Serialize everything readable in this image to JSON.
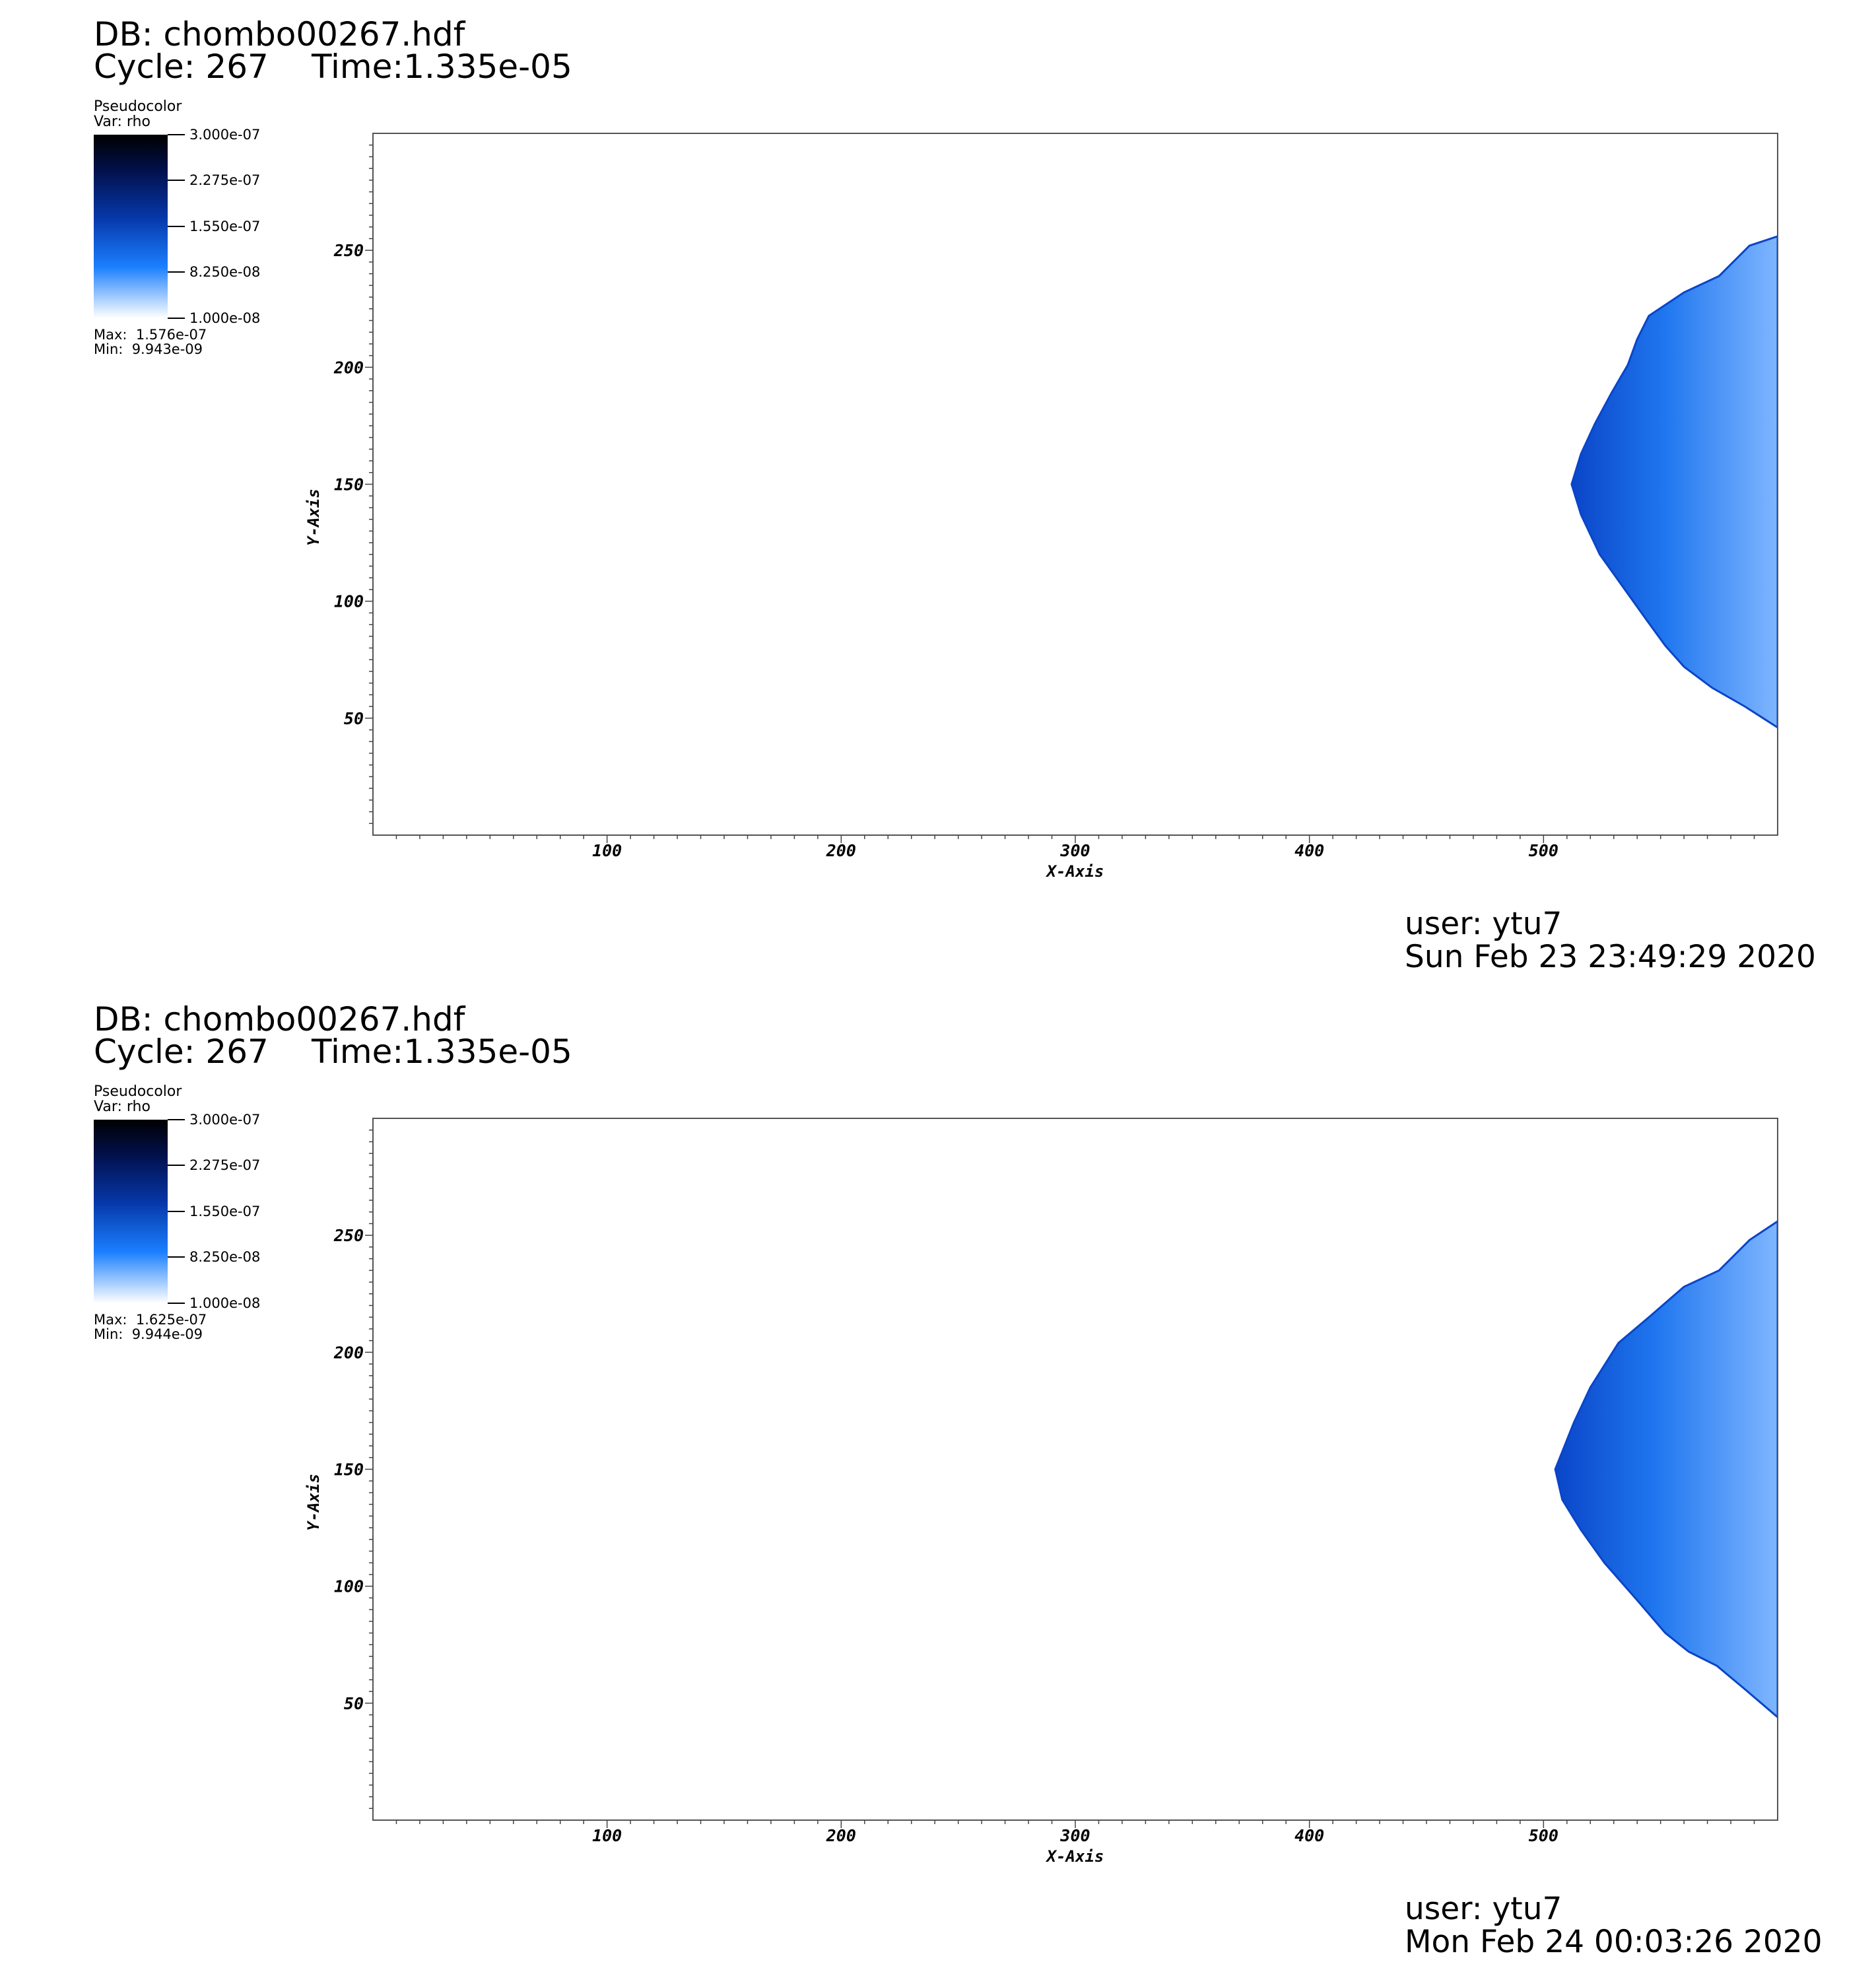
{
  "panels": [
    {
      "db_label": "DB: chombo00267.hdf",
      "cycle_label": "Cycle: 267",
      "time_label": "Time:1.335e-05",
      "legend": {
        "plot_type": "Pseudocolor",
        "var_label": "Var: rho",
        "ticks": [
          "3.000e-07",
          "2.275e-07",
          "1.550e-07",
          "8.250e-08",
          "1.000e-08"
        ],
        "max_label": "Max:  1.576e-07",
        "min_label": "Min:  9.943e-09"
      },
      "user_label": "user: ytu7",
      "date_label": "Sun Feb 23 23:49:29 2020"
    },
    {
      "db_label": "DB: chombo00267.hdf",
      "cycle_label": "Cycle: 267",
      "time_label": "Time:1.335e-05",
      "legend": {
        "plot_type": "Pseudocolor",
        "var_label": "Var: rho",
        "ticks": [
          "3.000e-07",
          "2.275e-07",
          "1.550e-07",
          "8.250e-08",
          "1.000e-08"
        ],
        "max_label": "Max:  1.625e-07",
        "min_label": "Min:  9.944e-09"
      },
      "user_label": "user: ytu7",
      "date_label": "Mon Feb 24 00:03:26 2020"
    }
  ],
  "chart_data": [
    {
      "type": "heatmap",
      "title": "",
      "xlabel": "X-Axis",
      "ylabel": "Y-Axis",
      "xlim": [
        0,
        600
      ],
      "ylim": [
        0,
        300
      ],
      "x_ticks": [
        100,
        200,
        300,
        400,
        500
      ],
      "y_ticks": [
        50,
        100,
        150,
        200,
        250
      ],
      "variable": "rho",
      "colorbar": {
        "min": 1e-08,
        "max": 3e-07
      },
      "data_range": {
        "min": 9.943e-09,
        "max": 1.576e-07
      },
      "colors": {
        "dense": "#0a45c8",
        "mid": "#1f76ef",
        "light": "#7fb6ff"
      },
      "region_outline": [
        [
          600,
          256
        ],
        [
          588,
          252
        ],
        [
          575,
          239
        ],
        [
          560,
          232
        ],
        [
          545,
          222
        ],
        [
          540,
          212
        ],
        [
          536,
          201
        ],
        [
          529,
          189
        ],
        [
          522,
          176
        ],
        [
          516,
          163
        ],
        [
          512,
          150
        ],
        [
          516,
          137
        ],
        [
          524,
          120
        ],
        [
          534,
          106
        ],
        [
          544,
          92
        ],
        [
          552,
          81
        ],
        [
          560,
          72
        ],
        [
          572,
          63
        ],
        [
          586,
          55
        ],
        [
          600,
          46
        ]
      ]
    },
    {
      "type": "heatmap",
      "title": "",
      "xlabel": "X-Axis",
      "ylabel": "Y-Axis",
      "xlim": [
        0,
        600
      ],
      "ylim": [
        0,
        300
      ],
      "x_ticks": [
        100,
        200,
        300,
        400,
        500
      ],
      "y_ticks": [
        50,
        100,
        150,
        200,
        250
      ],
      "variable": "rho",
      "colorbar": {
        "min": 1e-08,
        "max": 3e-07
      },
      "data_range": {
        "min": 9.944e-09,
        "max": 1.625e-07
      },
      "colors": {
        "dense": "#0a45c8",
        "mid": "#1f76ef",
        "light": "#7fb6ff"
      },
      "region_outline": [
        [
          600,
          256
        ],
        [
          588,
          248
        ],
        [
          575,
          235
        ],
        [
          560,
          228
        ],
        [
          545,
          215
        ],
        [
          532,
          204
        ],
        [
          520,
          185
        ],
        [
          513,
          170
        ],
        [
          505,
          150
        ],
        [
          508,
          137
        ],
        [
          516,
          124
        ],
        [
          526,
          110
        ],
        [
          540,
          94
        ],
        [
          552,
          80
        ],
        [
          562,
          72
        ],
        [
          574,
          66
        ],
        [
          586,
          56
        ],
        [
          600,
          44
        ]
      ]
    }
  ]
}
